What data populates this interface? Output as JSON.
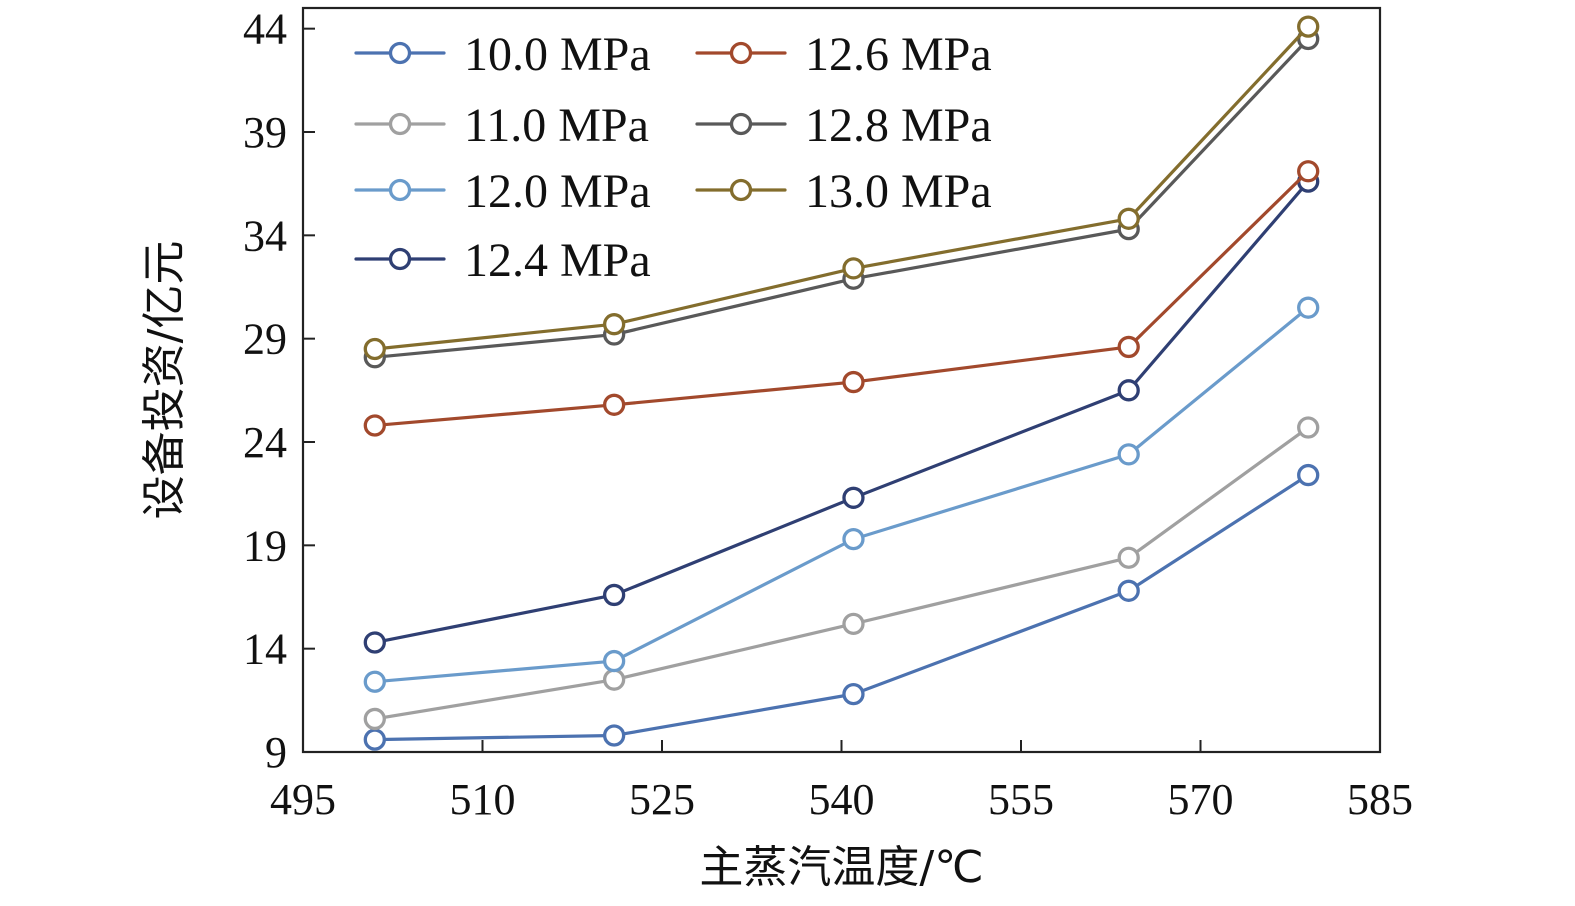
{
  "chart_data": {
    "type": "line",
    "xlabel": "主蒸汽温度/℃",
    "ylabel": "设备投资/亿元",
    "xlim": [
      495,
      585
    ],
    "ylim": [
      9,
      45
    ],
    "xticks": [
      495,
      510,
      525,
      540,
      555,
      570,
      585
    ],
    "yticks": [
      9,
      14,
      19,
      24,
      29,
      34,
      39,
      44
    ],
    "x": [
      501,
      521,
      541,
      564,
      579
    ],
    "grid": false,
    "legend": "top-left, two columns",
    "series": [
      {
        "name": "10.0 MPa",
        "color": "#4c72b0",
        "values": [
          9.6,
          9.8,
          11.8,
          16.8,
          22.4
        ]
      },
      {
        "name": "11.0 MPa",
        "color": "#a0a0a0",
        "values": [
          10.6,
          12.5,
          15.2,
          18.4,
          24.7
        ]
      },
      {
        "name": "12.0 MPa",
        "color": "#6a9bcb",
        "values": [
          12.4,
          13.4,
          19.3,
          23.4,
          30.5
        ]
      },
      {
        "name": "12.4 MPa",
        "color": "#2f3f73",
        "values": [
          14.3,
          16.6,
          21.3,
          26.5,
          36.6
        ]
      },
      {
        "name": "12.6 MPa",
        "color": "#a2492c",
        "values": [
          24.8,
          25.8,
          26.9,
          28.6,
          37.1
        ]
      },
      {
        "name": "12.8 MPa",
        "color": "#595959",
        "values": [
          28.1,
          29.2,
          31.9,
          34.3,
          43.5
        ]
      },
      {
        "name": "13.0 MPa",
        "color": "#836d2d",
        "values": [
          28.5,
          29.7,
          32.4,
          34.8,
          44.1
        ]
      }
    ]
  }
}
